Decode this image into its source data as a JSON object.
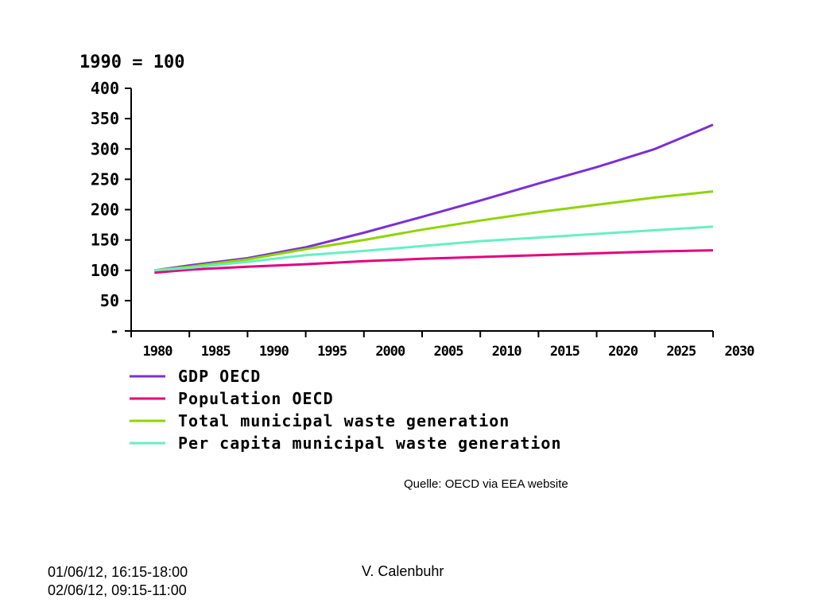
{
  "chart_data": {
    "type": "line",
    "unit_label": "1990 = 100",
    "y_ticks": [
      "400",
      "350",
      "300",
      "250",
      "200",
      "150",
      "100",
      "50",
      "-"
    ],
    "x_ticks": [
      "1980",
      "1985",
      "1990",
      "1995",
      "2000",
      "2005",
      "2010",
      "2015",
      "2020",
      "2025",
      "2030"
    ],
    "xlim": [
      1980,
      2030
    ],
    "ylim": [
      0,
      400
    ],
    "grid": false,
    "legend_position": "bottom",
    "series": [
      {
        "name": "GDP OECD",
        "color": "#7b2fd6",
        "x": [
          1982,
          1985,
          1990,
          1995,
          2000,
          2005,
          2010,
          2015,
          2020,
          2025,
          2030
        ],
        "y": [
          100,
          108,
          120,
          138,
          162,
          188,
          215,
          243,
          270,
          300,
          340
        ]
      },
      {
        "name": "Population OECD",
        "color": "#e6007e",
        "x": [
          1982,
          1985,
          1990,
          1995,
          2000,
          2005,
          2010,
          2015,
          2020,
          2025,
          2030
        ],
        "y": [
          96,
          101,
          106,
          110,
          115,
          119,
          122,
          125,
          128,
          131,
          133
        ]
      },
      {
        "name": "Total municipal waste generation",
        "color": "#8fd400",
        "x": [
          1982,
          1985,
          1990,
          1995,
          2000,
          2005,
          2010,
          2015,
          2020,
          2025,
          2030
        ],
        "y": [
          100,
          106,
          118,
          135,
          150,
          167,
          182,
          196,
          208,
          220,
          230
        ]
      },
      {
        "name": "Per capita municipal waste generation",
        "color": "#66f0c0",
        "x": [
          1982,
          1985,
          1990,
          1995,
          2000,
          2005,
          2010,
          2015,
          2020,
          2025,
          2030
        ],
        "y": [
          100,
          104,
          114,
          125,
          132,
          140,
          148,
          154,
          160,
          166,
          172
        ]
      }
    ]
  },
  "source": "Quelle: OECD via EEA website",
  "footer": {
    "date_line1": "01/06/12, 16:15-18:00",
    "date_line2": "02/06/12, 09:15-11:00",
    "author": "V. Calenbuhr"
  }
}
